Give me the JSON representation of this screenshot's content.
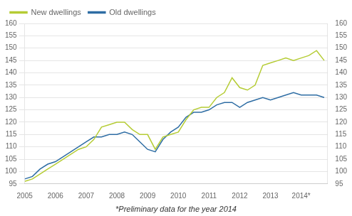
{
  "chart_data": {
    "type": "line",
    "footnote": "*Preliminary data for the year 2014",
    "x": [
      2005,
      2005.25,
      2005.5,
      2005.75,
      2006,
      2006.25,
      2006.5,
      2006.75,
      2007,
      2007.25,
      2007.5,
      2007.75,
      2008,
      2008.25,
      2008.5,
      2008.75,
      2009,
      2009.25,
      2009.5,
      2009.75,
      2010,
      2010.25,
      2010.5,
      2010.75,
      2011,
      2011.25,
      2011.5,
      2011.75,
      2012,
      2012.25,
      2012.5,
      2012.75,
      2013,
      2013.25,
      2013.5,
      2013.75,
      2014,
      2014.25,
      2014.5,
      2014.75
    ],
    "series": [
      {
        "name": "New dwellings",
        "color": "#b5cc34",
        "values": [
          96,
          97,
          99,
          101,
          103,
          105,
          107,
          109,
          110,
          113,
          118,
          119,
          120,
          120,
          117,
          115,
          115,
          109,
          114,
          115,
          116,
          121,
          125,
          126,
          126,
          130,
          132,
          138,
          134,
          133,
          135,
          143,
          144,
          145,
          146,
          145,
          146,
          147,
          149,
          145
        ]
      },
      {
        "name": "Old dwellings",
        "color": "#2e6da4",
        "values": [
          97,
          98,
          101,
          103,
          104,
          106,
          108,
          110,
          112,
          114,
          114,
          115,
          115,
          116,
          115,
          112,
          109,
          108,
          113,
          116,
          118,
          122,
          124,
          124,
          125,
          127,
          128,
          128,
          126,
          128,
          129,
          130,
          129,
          130,
          131,
          132,
          131,
          131,
          131,
          130
        ]
      }
    ],
    "xlim": [
      2005,
      2014.85
    ],
    "xticks": [
      2005,
      2006,
      2007,
      2008,
      2009,
      2010,
      2011,
      2012,
      2013,
      {
        "value": 2014,
        "label": "2014*"
      }
    ],
    "ylim": [
      95,
      160
    ],
    "yticks": [
      95,
      100,
      105,
      110,
      115,
      120,
      125,
      130,
      135,
      140,
      145,
      150,
      155,
      160
    ],
    "y2lim": [
      95,
      160
    ],
    "y2ticks": [
      95,
      100,
      105,
      110,
      115,
      120,
      125,
      130,
      135,
      140,
      145,
      150,
      155,
      160
    ],
    "grid": "y",
    "legend": "upper left"
  }
}
